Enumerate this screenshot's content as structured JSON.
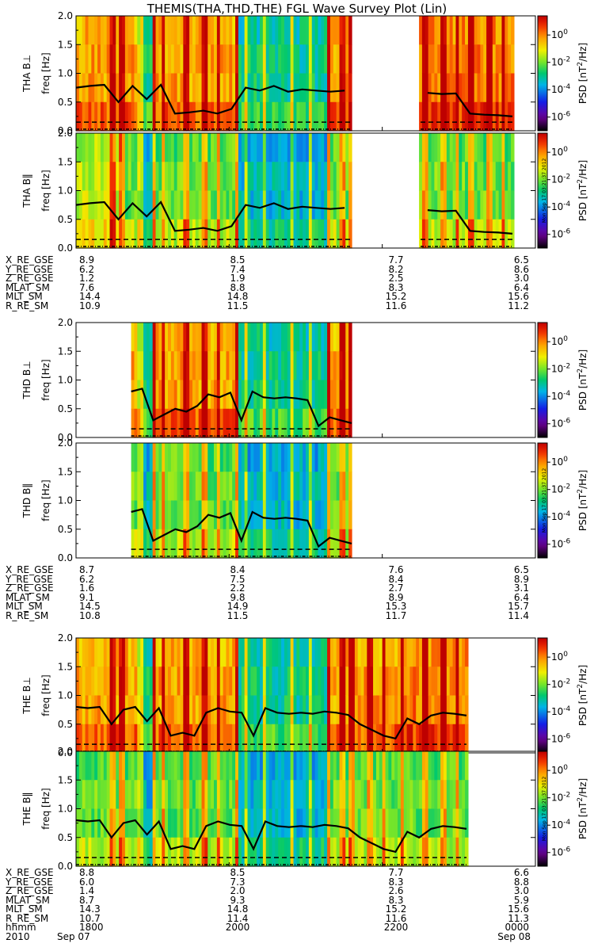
{
  "title": "THEMIS(THA,THD,THE) FGL Wave Survey Plot (Lin)",
  "colorbar": {
    "label_prefix": "PSD [nT",
    "label_sup": "2",
    "label_suffix": "/Hz]",
    "ticks": [
      {
        "base": "10",
        "exp": "0",
        "value_log10": 0
      },
      {
        "base": "10",
        "exp": "-2",
        "value_log10": -2
      },
      {
        "base": "10",
        "exp": "-4",
        "value_log10": -4
      },
      {
        "base": "10",
        "exp": "-6",
        "value_log10": -6
      }
    ],
    "stamp": "Mon Sep 17 03:21:37 2012"
  },
  "chart_data": {
    "type": "heatmap",
    "xrange_hhmm": [
      "1800",
      "0000"
    ],
    "ylim": [
      0,
      2.0
    ],
    "yticks": [
      "0.0",
      "0.5",
      "1.0",
      "1.5",
      "2.0"
    ],
    "ylabel": "freq [Hz]",
    "panels": [
      {
        "probe": "THA",
        "component": "B⊥",
        "label": "THA B⊥",
        "data_ranges": [
          [
            0.0,
            0.6
          ],
          [
            0.75,
            0.95
          ]
        ],
        "line": [
          0.75,
          0.78,
          0.8,
          0.5,
          0.78,
          0.55,
          0.8,
          0.3,
          0.32,
          0.35,
          0.3,
          0.38,
          0.75,
          0.7,
          0.78,
          0.68,
          0.72,
          0.7,
          0.68,
          0.7,
          0.66,
          0.64,
          0.65,
          0.3,
          0.28,
          0.27,
          0.25
        ]
      },
      {
        "probe": "THA",
        "component": "B‖",
        "label": "THA B‖",
        "data_ranges": [
          [
            0.0,
            0.6
          ],
          [
            0.75,
            0.95
          ]
        ],
        "line": [
          0.75,
          0.78,
          0.8,
          0.5,
          0.78,
          0.55,
          0.8,
          0.3,
          0.32,
          0.35,
          0.3,
          0.38,
          0.75,
          0.7,
          0.78,
          0.68,
          0.72,
          0.7,
          0.68,
          0.7,
          0.66,
          0.64,
          0.65,
          0.3,
          0.28,
          0.27,
          0.25
        ]
      },
      {
        "probe": "THD",
        "component": "B⊥",
        "label": "THD B⊥",
        "data_ranges": [
          [
            0.12,
            0.6
          ]
        ],
        "line": [
          0.8,
          0.85,
          0.3,
          0.4,
          0.5,
          0.45,
          0.55,
          0.75,
          0.7,
          0.78,
          0.3,
          0.8,
          0.7,
          0.68,
          0.7,
          0.68,
          0.65,
          0.2,
          0.35,
          0.3,
          0.25
        ]
      },
      {
        "probe": "THD",
        "component": "B‖",
        "label": "THD B‖",
        "data_ranges": [
          [
            0.12,
            0.6
          ]
        ],
        "line": [
          0.8,
          0.85,
          0.3,
          0.4,
          0.5,
          0.45,
          0.55,
          0.75,
          0.7,
          0.78,
          0.3,
          0.8,
          0.7,
          0.68,
          0.7,
          0.68,
          0.65,
          0.2,
          0.35,
          0.3,
          0.25
        ]
      },
      {
        "probe": "THE",
        "component": "B⊥",
        "label": "THE B⊥",
        "data_ranges": [
          [
            0.0,
            0.85
          ]
        ],
        "line": [
          0.8,
          0.78,
          0.8,
          0.5,
          0.75,
          0.8,
          0.55,
          0.78,
          0.3,
          0.35,
          0.3,
          0.7,
          0.78,
          0.72,
          0.7,
          0.3,
          0.78,
          0.7,
          0.68,
          0.7,
          0.68,
          0.72,
          0.7,
          0.66,
          0.5,
          0.4,
          0.3,
          0.25,
          0.6,
          0.5,
          0.65,
          0.7,
          0.68,
          0.65
        ]
      },
      {
        "probe": "THE",
        "component": "B‖",
        "label": "THE B‖",
        "data_ranges": [
          [
            0.0,
            0.85
          ]
        ],
        "line": [
          0.8,
          0.78,
          0.8,
          0.5,
          0.75,
          0.8,
          0.55,
          0.78,
          0.3,
          0.35,
          0.3,
          0.7,
          0.78,
          0.72,
          0.7,
          0.3,
          0.78,
          0.7,
          0.68,
          0.7,
          0.68,
          0.72,
          0.7,
          0.66,
          0.5,
          0.4,
          0.3,
          0.25,
          0.6,
          0.5,
          0.65,
          0.7,
          0.68,
          0.65
        ]
      }
    ]
  },
  "ephemeris": [
    {
      "rows": [
        {
          "name": "X_RE_GSE",
          "values": [
            "8.9",
            "8.5",
            "7.7",
            "6.5"
          ]
        },
        {
          "name": "Y_RE_GSE",
          "values": [
            "6.2",
            "7.4",
            "8.2",
            "8.6"
          ]
        },
        {
          "name": "Z_RE_GSE",
          "values": [
            "1.2",
            "1.9",
            "2.5",
            "3.0"
          ]
        },
        {
          "name": "MLAT_SM",
          "values": [
            "7.6",
            "8.8",
            "8.3",
            "6.4"
          ]
        },
        {
          "name": "MLT_SM",
          "values": [
            "14.4",
            "14.8",
            "15.2",
            "15.6"
          ]
        },
        {
          "name": "R_RE_SM",
          "values": [
            "10.9",
            "11.5",
            "11.6",
            "11.2"
          ]
        }
      ]
    },
    {
      "rows": [
        {
          "name": "X_RE_GSE",
          "values": [
            "8.7",
            "8.4",
            "7.6",
            "6.5"
          ]
        },
        {
          "name": "Y_RE_GSE",
          "values": [
            "6.2",
            "7.5",
            "8.4",
            "8.9"
          ]
        },
        {
          "name": "Z_RE_GSE",
          "values": [
            "1.6",
            "2.2",
            "2.7",
            "3.1"
          ]
        },
        {
          "name": "MLAT_SM",
          "values": [
            "9.1",
            "9.8",
            "8.9",
            "6.4"
          ]
        },
        {
          "name": "MLT_SM",
          "values": [
            "14.5",
            "14.9",
            "15.3",
            "15.7"
          ]
        },
        {
          "name": "R_RE_SM",
          "values": [
            "10.8",
            "11.5",
            "11.7",
            "11.4"
          ]
        }
      ]
    },
    {
      "rows": [
        {
          "name": "X_RE_GSE",
          "values": [
            "8.8",
            "8.5",
            "7.7",
            "6.6"
          ]
        },
        {
          "name": "Y_RE_GSE",
          "values": [
            "6.0",
            "7.3",
            "8.3",
            "8.8"
          ]
        },
        {
          "name": "Z_RE_GSE",
          "values": [
            "1.4",
            "2.0",
            "2.6",
            "3.0"
          ]
        },
        {
          "name": "MLAT_SM",
          "values": [
            "8.7",
            "9.3",
            "8.3",
            "5.9"
          ]
        },
        {
          "name": "MLT_SM",
          "values": [
            "14.3",
            "14.8",
            "15.2",
            "15.6"
          ]
        },
        {
          "name": "R_RE_SM",
          "values": [
            "10.7",
            "11.4",
            "11.6",
            "11.3"
          ]
        },
        {
          "name": "hhmm",
          "values": [
            "1800",
            "2000",
            "2200",
            "0000"
          ]
        }
      ]
    }
  ],
  "date_row": {
    "year": "2010",
    "start": "Sep 07",
    "end": "Sep 08"
  }
}
